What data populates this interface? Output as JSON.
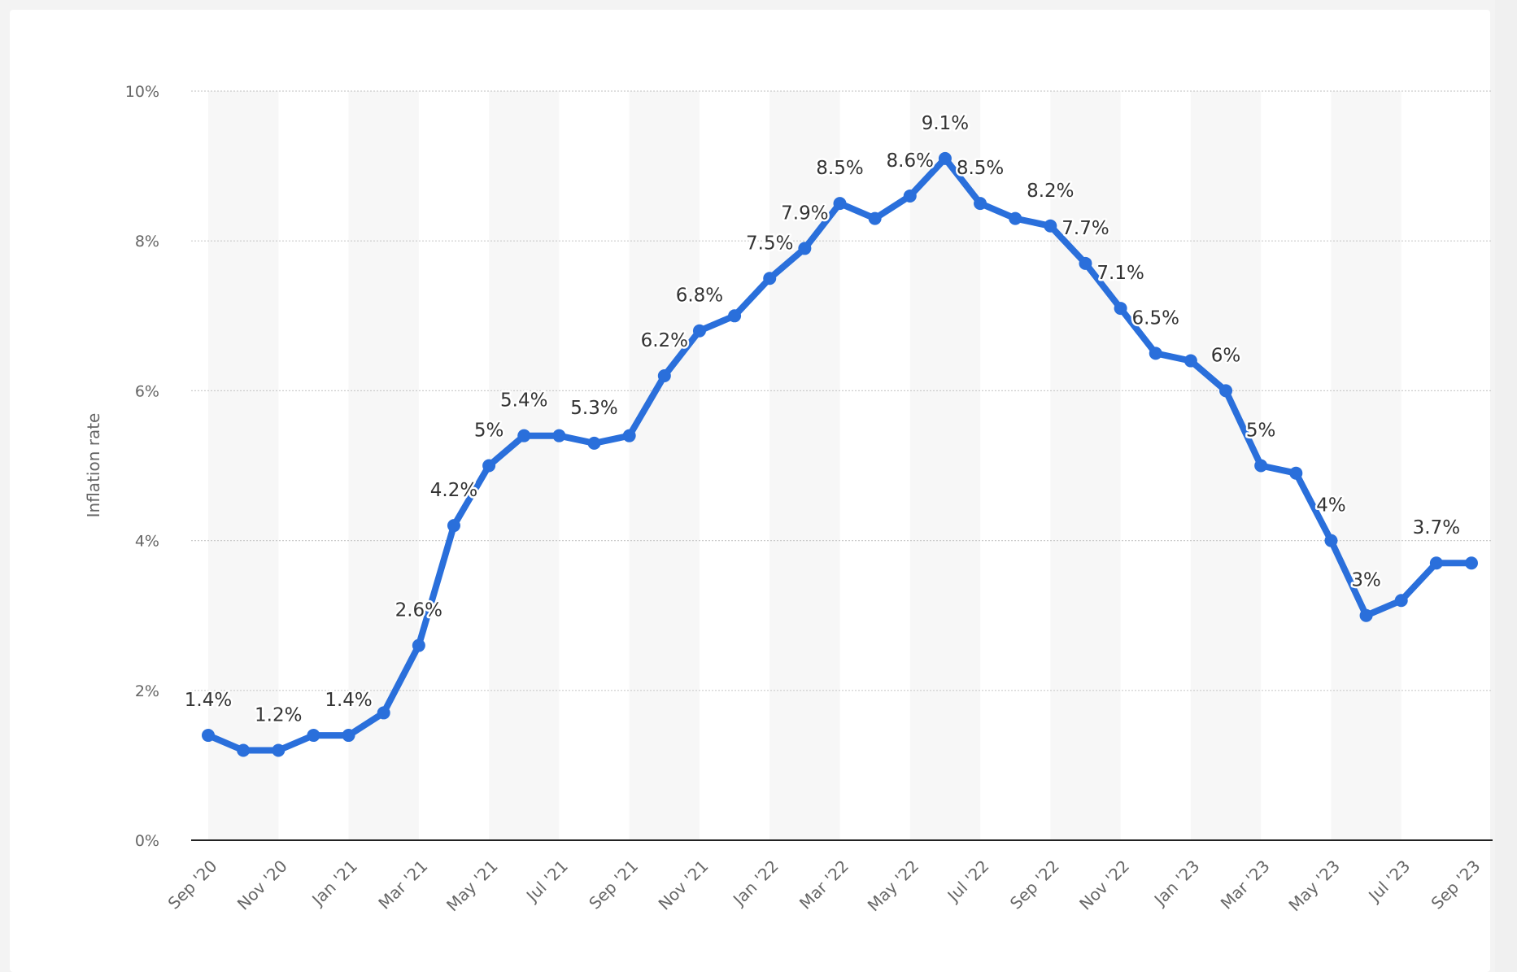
{
  "chart_data": {
    "type": "line",
    "ylabel": "Inflation rate",
    "xlabel": "",
    "ylim": [
      0,
      10
    ],
    "y_ticks": [
      "0%",
      "2%",
      "4%",
      "6%",
      "8%",
      "10%"
    ],
    "y_tick_values": [
      0,
      2,
      4,
      6,
      8,
      10
    ],
    "x_tick_labels": [
      "Sep '20",
      "Nov '20",
      "Jan '21",
      "Mar '21",
      "May '21",
      "Jul '21",
      "Sep '21",
      "Nov '21",
      "Jan '22",
      "Mar '22",
      "May '22",
      "Jul '22",
      "Sep '22",
      "Nov '22",
      "Jan '23",
      "Mar '23",
      "May '23",
      "Jul '23",
      "Sep '23"
    ],
    "categories": [
      "Sep '20",
      "Oct '20",
      "Nov '20",
      "Dec '20",
      "Jan '21",
      "Feb '21",
      "Mar '21",
      "Apr '21",
      "May '21",
      "Jun '21",
      "Jul '21",
      "Aug '21",
      "Sep '21",
      "Oct '21",
      "Nov '21",
      "Dec '21",
      "Jan '22",
      "Feb '22",
      "Mar '22",
      "Apr '22",
      "May '22",
      "Jun '22",
      "Jul '22",
      "Aug '22",
      "Sep '22",
      "Oct '22",
      "Nov '22",
      "Dec '22",
      "Jan '23",
      "Feb '23",
      "Mar '23",
      "Apr '23",
      "May '23",
      "Jun '23",
      "Jul '23",
      "Aug '23",
      "Sep '23"
    ],
    "values": [
      1.4,
      1.2,
      1.2,
      1.4,
      1.4,
      1.7,
      2.6,
      4.2,
      5.0,
      5.4,
      5.4,
      5.3,
      5.4,
      6.2,
      6.8,
      7.0,
      7.5,
      7.9,
      8.5,
      8.3,
      8.6,
      9.1,
      8.5,
      8.3,
      8.2,
      7.7,
      7.1,
      6.5,
      6.4,
      6.0,
      5.0,
      4.9,
      4.0,
      3.0,
      3.2,
      3.7,
      3.7
    ],
    "data_labels": [
      {
        "index": 0,
        "text": "1.4%"
      },
      {
        "index": 2,
        "text": "1.2%"
      },
      {
        "index": 4,
        "text": "1.4%"
      },
      {
        "index": 6,
        "text": "2.6%"
      },
      {
        "index": 7,
        "text": "4.2%"
      },
      {
        "index": 8,
        "text": "5%"
      },
      {
        "index": 9,
        "text": "5.4%"
      },
      {
        "index": 11,
        "text": "5.3%"
      },
      {
        "index": 13,
        "text": "6.2%"
      },
      {
        "index": 14,
        "text": "6.8%"
      },
      {
        "index": 16,
        "text": "7.5%"
      },
      {
        "index": 17,
        "text": "7.9%"
      },
      {
        "index": 18,
        "text": "8.5%"
      },
      {
        "index": 20,
        "text": "8.6%"
      },
      {
        "index": 21,
        "text": "9.1%"
      },
      {
        "index": 22,
        "text": "8.5%"
      },
      {
        "index": 24,
        "text": "8.2%"
      },
      {
        "index": 25,
        "text": "7.7%"
      },
      {
        "index": 26,
        "text": "7.1%"
      },
      {
        "index": 27,
        "text": "6.5%"
      },
      {
        "index": 29,
        "text": "6%"
      },
      {
        "index": 30,
        "text": "5%"
      },
      {
        "index": 32,
        "text": "4%"
      },
      {
        "index": 33,
        "text": "3%"
      },
      {
        "index": 35,
        "text": "3.7%"
      }
    ],
    "grid": true,
    "legend": "none",
    "colors": {
      "line": "#2a6fdb",
      "grid": "#cccccc",
      "band": "#f7f7f7",
      "axis": "#222222"
    }
  }
}
